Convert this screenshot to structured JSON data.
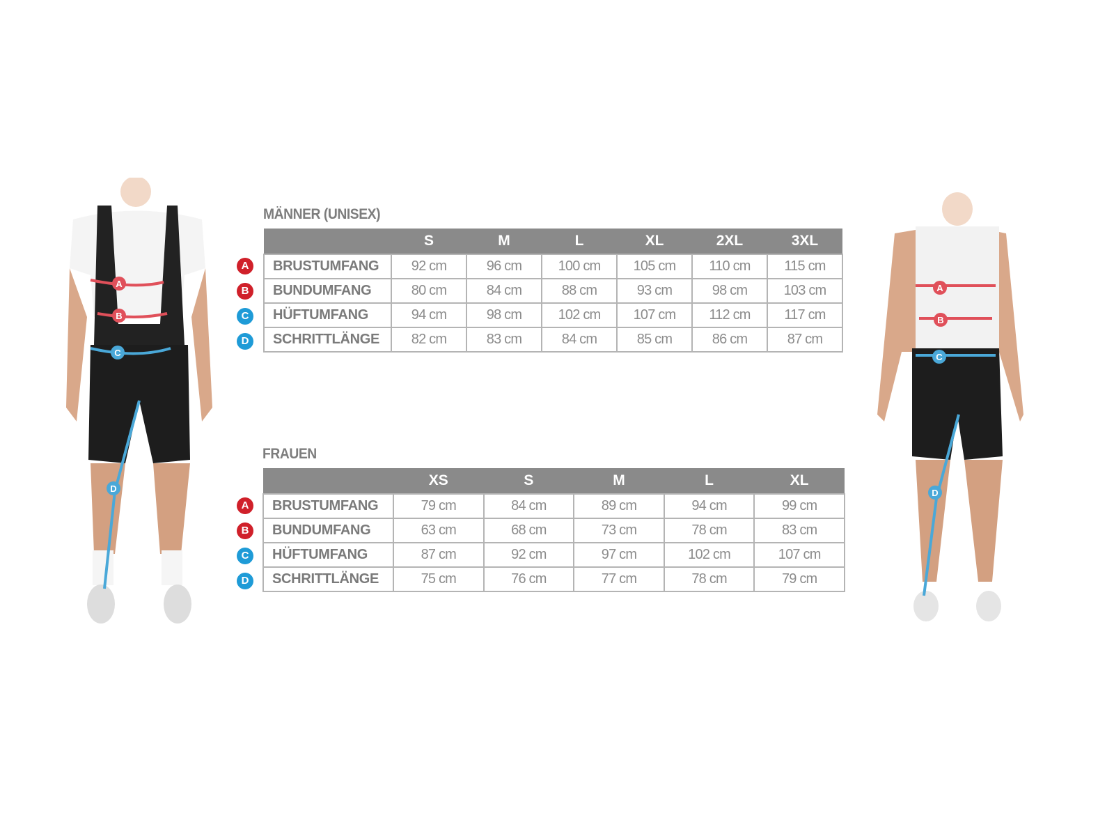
{
  "colors": {
    "header_bg": "#8a8a8a",
    "badge_red": "#d0202a",
    "badge_blue": "#1e9bd7",
    "arrow_red": "#e0505a",
    "line_blue": "#4aa8d8"
  },
  "markers": [
    "A",
    "B",
    "C",
    "D"
  ],
  "men": {
    "title": "MÄNNER (UNISEX)",
    "sizes": [
      "S",
      "M",
      "L",
      "XL",
      "2XL",
      "3XL"
    ],
    "rows": [
      {
        "marker": "A",
        "label": "BRUSTUMFANG",
        "values": [
          "92 cm",
          "96 cm",
          "100 cm",
          "105 cm",
          "110 cm",
          "115 cm"
        ]
      },
      {
        "marker": "B",
        "label": "BUNDUMFANG",
        "values": [
          "80 cm",
          "84 cm",
          "88 cm",
          "93 cm",
          "98 cm",
          "103 cm"
        ]
      },
      {
        "marker": "C",
        "label": "HÜFTUMFANG",
        "values": [
          "94 cm",
          "98 cm",
          "102 cm",
          "107 cm",
          "112 cm",
          "117 cm"
        ]
      },
      {
        "marker": "D",
        "label": "SCHRITTLÄNGE",
        "values": [
          "82 cm",
          "83 cm",
          "84 cm",
          "85 cm",
          "86 cm",
          "87 cm"
        ]
      }
    ]
  },
  "women": {
    "title": "FRAUEN",
    "sizes": [
      "XS",
      "S",
      "M",
      "L",
      "XL"
    ],
    "rows": [
      {
        "marker": "A",
        "label": "BRUSTUMFANG",
        "values": [
          "79 cm",
          "84 cm",
          "89 cm",
          "94 cm",
          "99 cm"
        ]
      },
      {
        "marker": "B",
        "label": "BUNDUMFANG",
        "values": [
          "63 cm",
          "68 cm",
          "73 cm",
          "78 cm",
          "83 cm"
        ]
      },
      {
        "marker": "C",
        "label": "HÜFTUMFANG",
        "values": [
          "87 cm",
          "92 cm",
          "97 cm",
          "102 cm",
          "107 cm"
        ]
      },
      {
        "marker": "D",
        "label": "SCHRITTLÄNGE",
        "values": [
          "75 cm",
          "76 cm",
          "77 cm",
          "78 cm",
          "79 cm"
        ]
      }
    ]
  }
}
